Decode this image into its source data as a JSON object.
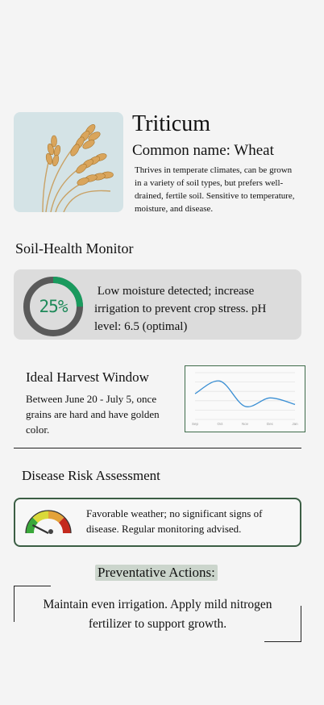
{
  "plant": {
    "image_icon": "wheat-ears-illustration",
    "title": "Triticum",
    "common_name": "Common name: Wheat",
    "description": "Thrives in temperate climates, can be grown in a variety of soil types, but prefers well-drained, fertile soil. Sensitive to temperature, moisture, and disease."
  },
  "soil": {
    "heading": "Soil-Health Monitor",
    "moisture_percent": 25,
    "moisture_label": "25%",
    "status_text": " Low moisture detected; increase irrigation to prevent crop stress. pH level: 6.5 (optimal)",
    "colors": {
      "ring_fill": "#1a9a5e",
      "ring_track": "#5a5a5a",
      "card_bg": "#dcdcdc"
    }
  },
  "harvest": {
    "heading": "Ideal Harvest Window",
    "text": "Between June 20 - July 5, once grains are hard and have golden color."
  },
  "chart_data": {
    "type": "line",
    "categories": [
      "Sep",
      "Oct",
      "Nov",
      "Dec",
      "Jan"
    ],
    "series": [
      {
        "values": [
          5.5,
          8.2,
          2.8,
          4.6,
          3.2
        ],
        "color": "#3a8fd4"
      }
    ],
    "xlabel": "",
    "ylabel": "",
    "ylim": [
      0,
      10
    ],
    "grid": true
  },
  "disease": {
    "heading": "Disease Risk Assessment",
    "risk_level": 0.15,
    "risk_icon": "risk-gauge-icon",
    "text": "Favorable weather; no significant signs of disease. Regular monitoring advised.",
    "colors": {
      "border": "#3b5e44",
      "low": "#3aa83a",
      "mid_low": "#d9d93a",
      "mid_high": "#e3a23a",
      "high": "#c42a1e"
    }
  },
  "actions": {
    "label": "Preventative Actions:",
    "text": "Maintain even irrigation. Apply mild nitrogen fertilizer to support growth."
  }
}
